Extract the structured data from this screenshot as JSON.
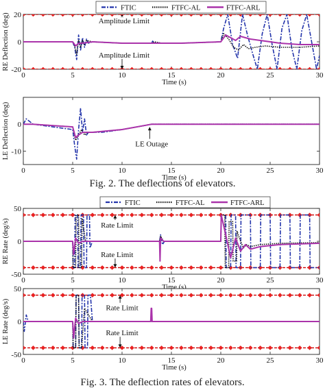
{
  "figures": [
    {
      "caption": "Fig. 2. The deflections of elevators.",
      "legend": [
        "FTIC",
        "FTFC-AL",
        "FTFC-ARL"
      ]
    },
    {
      "caption": "Fig. 3. The deflection rates of elevators.",
      "legend": [
        "FTIC",
        "FTFC-AL",
        "FTFC-ARL"
      ]
    }
  ],
  "colors": {
    "ftic": "#2233aa",
    "ftfc_al": "#111111",
    "ftfc_arl": "#aa33aa",
    "limit_line": "#cc0000",
    "limit_marker": "#ee2222"
  },
  "chart_data": [
    {
      "id": "re-deflection",
      "type": "line",
      "ylabel": "RE Deflection (deg)",
      "xlabel": "Time (s)",
      "xlim": [
        0,
        30
      ],
      "ylim": [
        -20,
        20
      ],
      "xticks": [
        0,
        5,
        10,
        15,
        20,
        25,
        30
      ],
      "yticks": [
        -20,
        0,
        20
      ],
      "limits": [
        20,
        -20
      ],
      "annotations": [
        {
          "text": "Amplitude Limit",
          "x": 10.2,
          "y": 14,
          "arrow_to": 20
        },
        {
          "text": "Amplitude Limit",
          "x": 10.2,
          "y": -11,
          "arrow_to": -20
        }
      ],
      "series": [
        {
          "name": "FTIC",
          "style": "dashdot",
          "x": [
            0,
            5,
            5.2,
            5.4,
            5.6,
            5.8,
            6.0,
            6.2,
            6.4,
            6.6,
            7,
            10,
            13,
            13.1,
            13.3,
            14,
            16,
            20,
            20.3,
            20.7,
            21.2,
            21.7,
            22.2,
            22.7,
            23.2,
            23.7,
            24.2,
            24.7,
            25.2,
            25.7,
            26.2,
            26.7,
            27.2,
            27.7,
            28.2,
            28.7,
            29.2,
            29.7,
            30
          ],
          "y": [
            0,
            0,
            -4,
            -13,
            5,
            -6,
            3,
            -4,
            2,
            -1,
            0,
            -1,
            -1,
            0.5,
            -0.5,
            -1,
            -1,
            0,
            10,
            20,
            -2,
            -12,
            20,
            5,
            -8,
            -20,
            6,
            20,
            -2,
            -20,
            10,
            20,
            -5,
            -20,
            8,
            20,
            0,
            -20,
            -10
          ]
        },
        {
          "name": "FTFC-AL",
          "style": "dotted",
          "x": [
            0,
            5,
            5.2,
            5.4,
            5.6,
            5.8,
            6.0,
            6.2,
            6.4,
            7,
            10,
            13,
            13.3,
            14,
            16,
            20,
            20.3,
            20.8,
            21.3,
            21.8,
            22.3,
            22.8,
            23.5,
            24.5,
            26,
            28,
            30
          ],
          "y": [
            0,
            0,
            -3,
            -9,
            1,
            -4,
            1,
            -2,
            1,
            0,
            -1,
            -1,
            0,
            -1,
            -1,
            0,
            6,
            2,
            -4,
            -6,
            -2,
            -5,
            -4,
            -3,
            -4,
            -4,
            -3
          ]
        },
        {
          "name": "FTFC-ARL",
          "style": "solid",
          "x": [
            0,
            5,
            5.3,
            5.6,
            6,
            7,
            10,
            13,
            14,
            16,
            20,
            20.5,
            21,
            21.5,
            22,
            23,
            24,
            26,
            28,
            30
          ],
          "y": [
            0,
            0,
            -3,
            -1,
            -1,
            0,
            -1,
            -1,
            -1,
            -1,
            0,
            5,
            3,
            1,
            4,
            2,
            1,
            -1,
            -2,
            -2
          ]
        }
      ]
    },
    {
      "id": "le-deflection",
      "type": "line",
      "ylabel": "LE Deflection (deg)",
      "xlabel": "Time (s)",
      "xlim": [
        0,
        30
      ],
      "ylim": [
        -15,
        10
      ],
      "xticks": [
        0,
        5,
        10,
        15,
        20,
        25,
        30
      ],
      "yticks": [
        -10,
        0
      ],
      "annotations": [
        {
          "text": "LE Outage",
          "x": 13,
          "y": -8,
          "arrow_to": -1
        }
      ],
      "series": [
        {
          "name": "FTIC",
          "style": "dashdot",
          "x": [
            0,
            0.3,
            1,
            5,
            5.2,
            5.4,
            5.6,
            5.8,
            6.0,
            6.2,
            6.4,
            6.6,
            7,
            8,
            10,
            13,
            16,
            20,
            25,
            30
          ],
          "y": [
            0,
            2,
            0,
            -2,
            -8,
            -13,
            -2,
            6,
            -3,
            2,
            -4,
            -3,
            -3,
            -3,
            -2,
            0,
            0,
            0,
            0,
            0
          ],
          "dx": 0
        },
        {
          "name": "FTFC-AL",
          "style": "dotted",
          "x": [
            0,
            1,
            5,
            5.3,
            5.6,
            5.9,
            6.2,
            6.5,
            7,
            10,
            13,
            16,
            20,
            25,
            30
          ],
          "y": [
            0,
            0,
            -1,
            -6,
            -4,
            -2,
            -4,
            -3,
            -3,
            -2,
            0,
            0,
            0,
            0,
            0
          ]
        },
        {
          "name": "FTFC-ARL",
          "style": "solid",
          "x": [
            0,
            1,
            5,
            5.3,
            5.6,
            6,
            7,
            10,
            13,
            16,
            20,
            25,
            30
          ],
          "y": [
            0,
            0,
            -1,
            -5,
            -4,
            -3,
            -3,
            -2,
            0,
            0,
            0,
            0,
            0
          ]
        }
      ]
    },
    {
      "id": "re-rate",
      "type": "line",
      "ylabel": "RE Rate (deg/s)",
      "xlabel": "Time (s)",
      "xlim": [
        0,
        30
      ],
      "ylim": [
        -50,
        50
      ],
      "xticks": [
        0,
        5,
        10,
        15,
        20,
        25,
        30
      ],
      "yticks": [
        -50,
        0,
        50
      ],
      "limits": [
        40,
        -40
      ],
      "annotations": [
        {
          "text": "Rate Limit",
          "x": 9.5,
          "y": 22,
          "arrow_to": 40
        },
        {
          "text": "Rate Limit",
          "x": 9.5,
          "y": -23,
          "arrow_to": -40
        }
      ],
      "series": [
        {
          "name": "FTIC",
          "style": "dashdot",
          "x": [
            0,
            5,
            5.05,
            5.2,
            5.25,
            5.5,
            5.55,
            5.8,
            5.85,
            6.1,
            6.15,
            6.4,
            6.45,
            6.7,
            6.75,
            7,
            13.8,
            13.9,
            14.1,
            14.3,
            20,
            20.05,
            20.5,
            20.55,
            21,
            21.05,
            21.5,
            21.55,
            22,
            22.05,
            23,
            23.05,
            24,
            24.05,
            25,
            25.05,
            26,
            26.05,
            27,
            27.05,
            28,
            28.05,
            29,
            29.05,
            30
          ],
          "y": [
            0,
            0,
            -40,
            -40,
            40,
            40,
            -40,
            -40,
            40,
            40,
            -40,
            -40,
            40,
            40,
            -10,
            0,
            0,
            10,
            -5,
            0,
            0,
            40,
            40,
            -40,
            -40,
            40,
            40,
            -40,
            -40,
            40,
            40,
            -40,
            -40,
            40,
            40,
            -40,
            -40,
            40,
            40,
            -40,
            -40,
            40,
            40,
            -40,
            -40
          ]
        },
        {
          "name": "FTFC-AL",
          "style": "dotted",
          "x": [
            0,
            5,
            5.05,
            5.3,
            5.35,
            5.6,
            5.65,
            5.9,
            5.95,
            6.3,
            7,
            13.8,
            13.9,
            14.2,
            20,
            20.05,
            20.4,
            20.45,
            20.8,
            20.85,
            21.2,
            21.25,
            21.6,
            21.65,
            22,
            22.3,
            22.6,
            23,
            24,
            26,
            30
          ],
          "y": [
            0,
            0,
            -40,
            -40,
            40,
            40,
            -40,
            -40,
            35,
            0,
            0,
            0,
            8,
            0,
            0,
            40,
            40,
            -40,
            -40,
            30,
            30,
            -30,
            -30,
            15,
            0,
            -10,
            -5,
            -8,
            -5,
            -3,
            -2
          ]
        },
        {
          "name": "FTFC-ARL",
          "style": "solid",
          "x": [
            0,
            5,
            5.1,
            5.3,
            5.6,
            6,
            7,
            13.8,
            13.85,
            13.9,
            14.2,
            20,
            20.05,
            20.5,
            21,
            21.5,
            22,
            22.5,
            23,
            24,
            26,
            30
          ],
          "y": [
            0,
            0,
            -20,
            5,
            -3,
            0,
            0,
            0,
            -30,
            5,
            0,
            0,
            40,
            10,
            -25,
            5,
            -15,
            -5,
            -12,
            -8,
            -5,
            -3
          ]
        }
      ]
    },
    {
      "id": "le-rate",
      "type": "line",
      "ylabel": "LE Rate (deg/s)",
      "xlabel": "Time (s)",
      "xlim": [
        0,
        30
      ],
      "ylim": [
        -50,
        50
      ],
      "xticks": [
        0,
        5,
        10,
        15,
        20,
        25,
        30
      ],
      "yticks": [
        -50,
        0,
        50
      ],
      "limits": [
        40,
        -40
      ],
      "annotations": [
        {
          "text": "Rate Limit",
          "x": 10,
          "y": 18,
          "arrow_to": 40
        },
        {
          "text": "Rate Limit",
          "x": 10,
          "y": -20,
          "arrow_to": -40
        }
      ],
      "series": [
        {
          "name": "FTIC",
          "style": "dashdot",
          "x": [
            0,
            0.1,
            0.3,
            0.5,
            5,
            5.05,
            5.3,
            5.35,
            5.6,
            5.65,
            5.9,
            5.95,
            6.2,
            6.25,
            6.5,
            6.55,
            6.8,
            7,
            13,
            30
          ],
          "y": [
            0,
            -15,
            10,
            0,
            0,
            -40,
            -40,
            40,
            40,
            -40,
            -40,
            40,
            40,
            -40,
            -40,
            40,
            40,
            0,
            0,
            0
          ]
        },
        {
          "name": "FTFC-AL",
          "style": "dotted",
          "x": [
            0,
            5,
            5.05,
            5.3,
            5.35,
            5.6,
            5.65,
            5.9,
            6.2,
            7,
            13,
            30
          ],
          "y": [
            0,
            0,
            -40,
            -40,
            40,
            40,
            -40,
            -40,
            20,
            0,
            0,
            0
          ]
        },
        {
          "name": "FTFC-ARL",
          "style": "solid",
          "x": [
            0,
            5,
            5.1,
            5.3,
            5.6,
            6,
            7,
            12.9,
            12.95,
            13.0,
            13.05,
            30
          ],
          "y": [
            0,
            0,
            -25,
            5,
            -3,
            0,
            0,
            0,
            20,
            20,
            0,
            0
          ]
        }
      ]
    }
  ]
}
